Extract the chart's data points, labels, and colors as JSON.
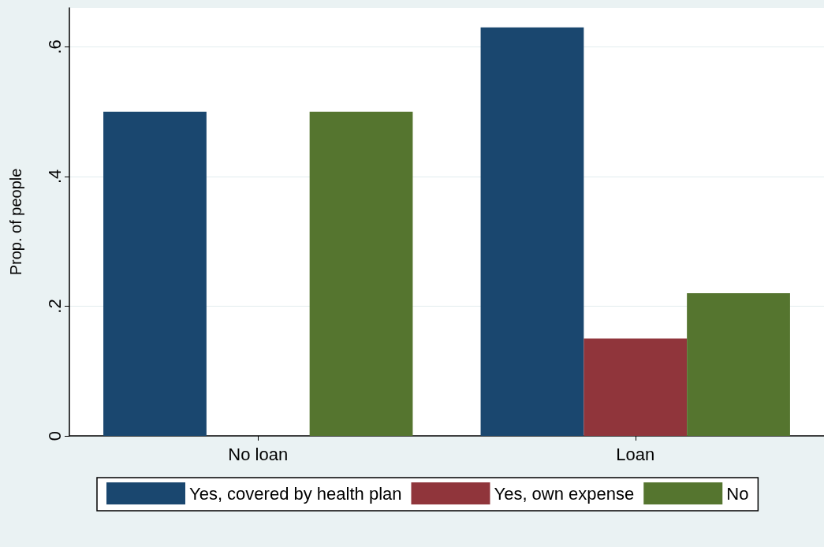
{
  "chart_data": {
    "type": "bar",
    "ylabel": "Prop. of people",
    "categories": [
      "No loan",
      "Loan"
    ],
    "series": [
      {
        "name": "Yes, covered by health plan",
        "color": "#1a476f",
        "values": [
          0.5,
          0.63
        ]
      },
      {
        "name": "Yes, own expense",
        "color": "#90353b",
        "values": [
          0,
          0.15
        ]
      },
      {
        "name": "No",
        "color": "#55752f",
        "values": [
          0.5,
          0.22
        ]
      }
    ],
    "ylim": [
      0,
      0.66
    ],
    "yticks": [
      {
        "value": 0,
        "label": "0"
      },
      {
        "value": 0.2,
        "label": ".2"
      },
      {
        "value": 0.4,
        "label": ".4"
      },
      {
        "value": 0.6,
        "label": ".6"
      }
    ],
    "grid": "y",
    "legend": "bottom"
  }
}
